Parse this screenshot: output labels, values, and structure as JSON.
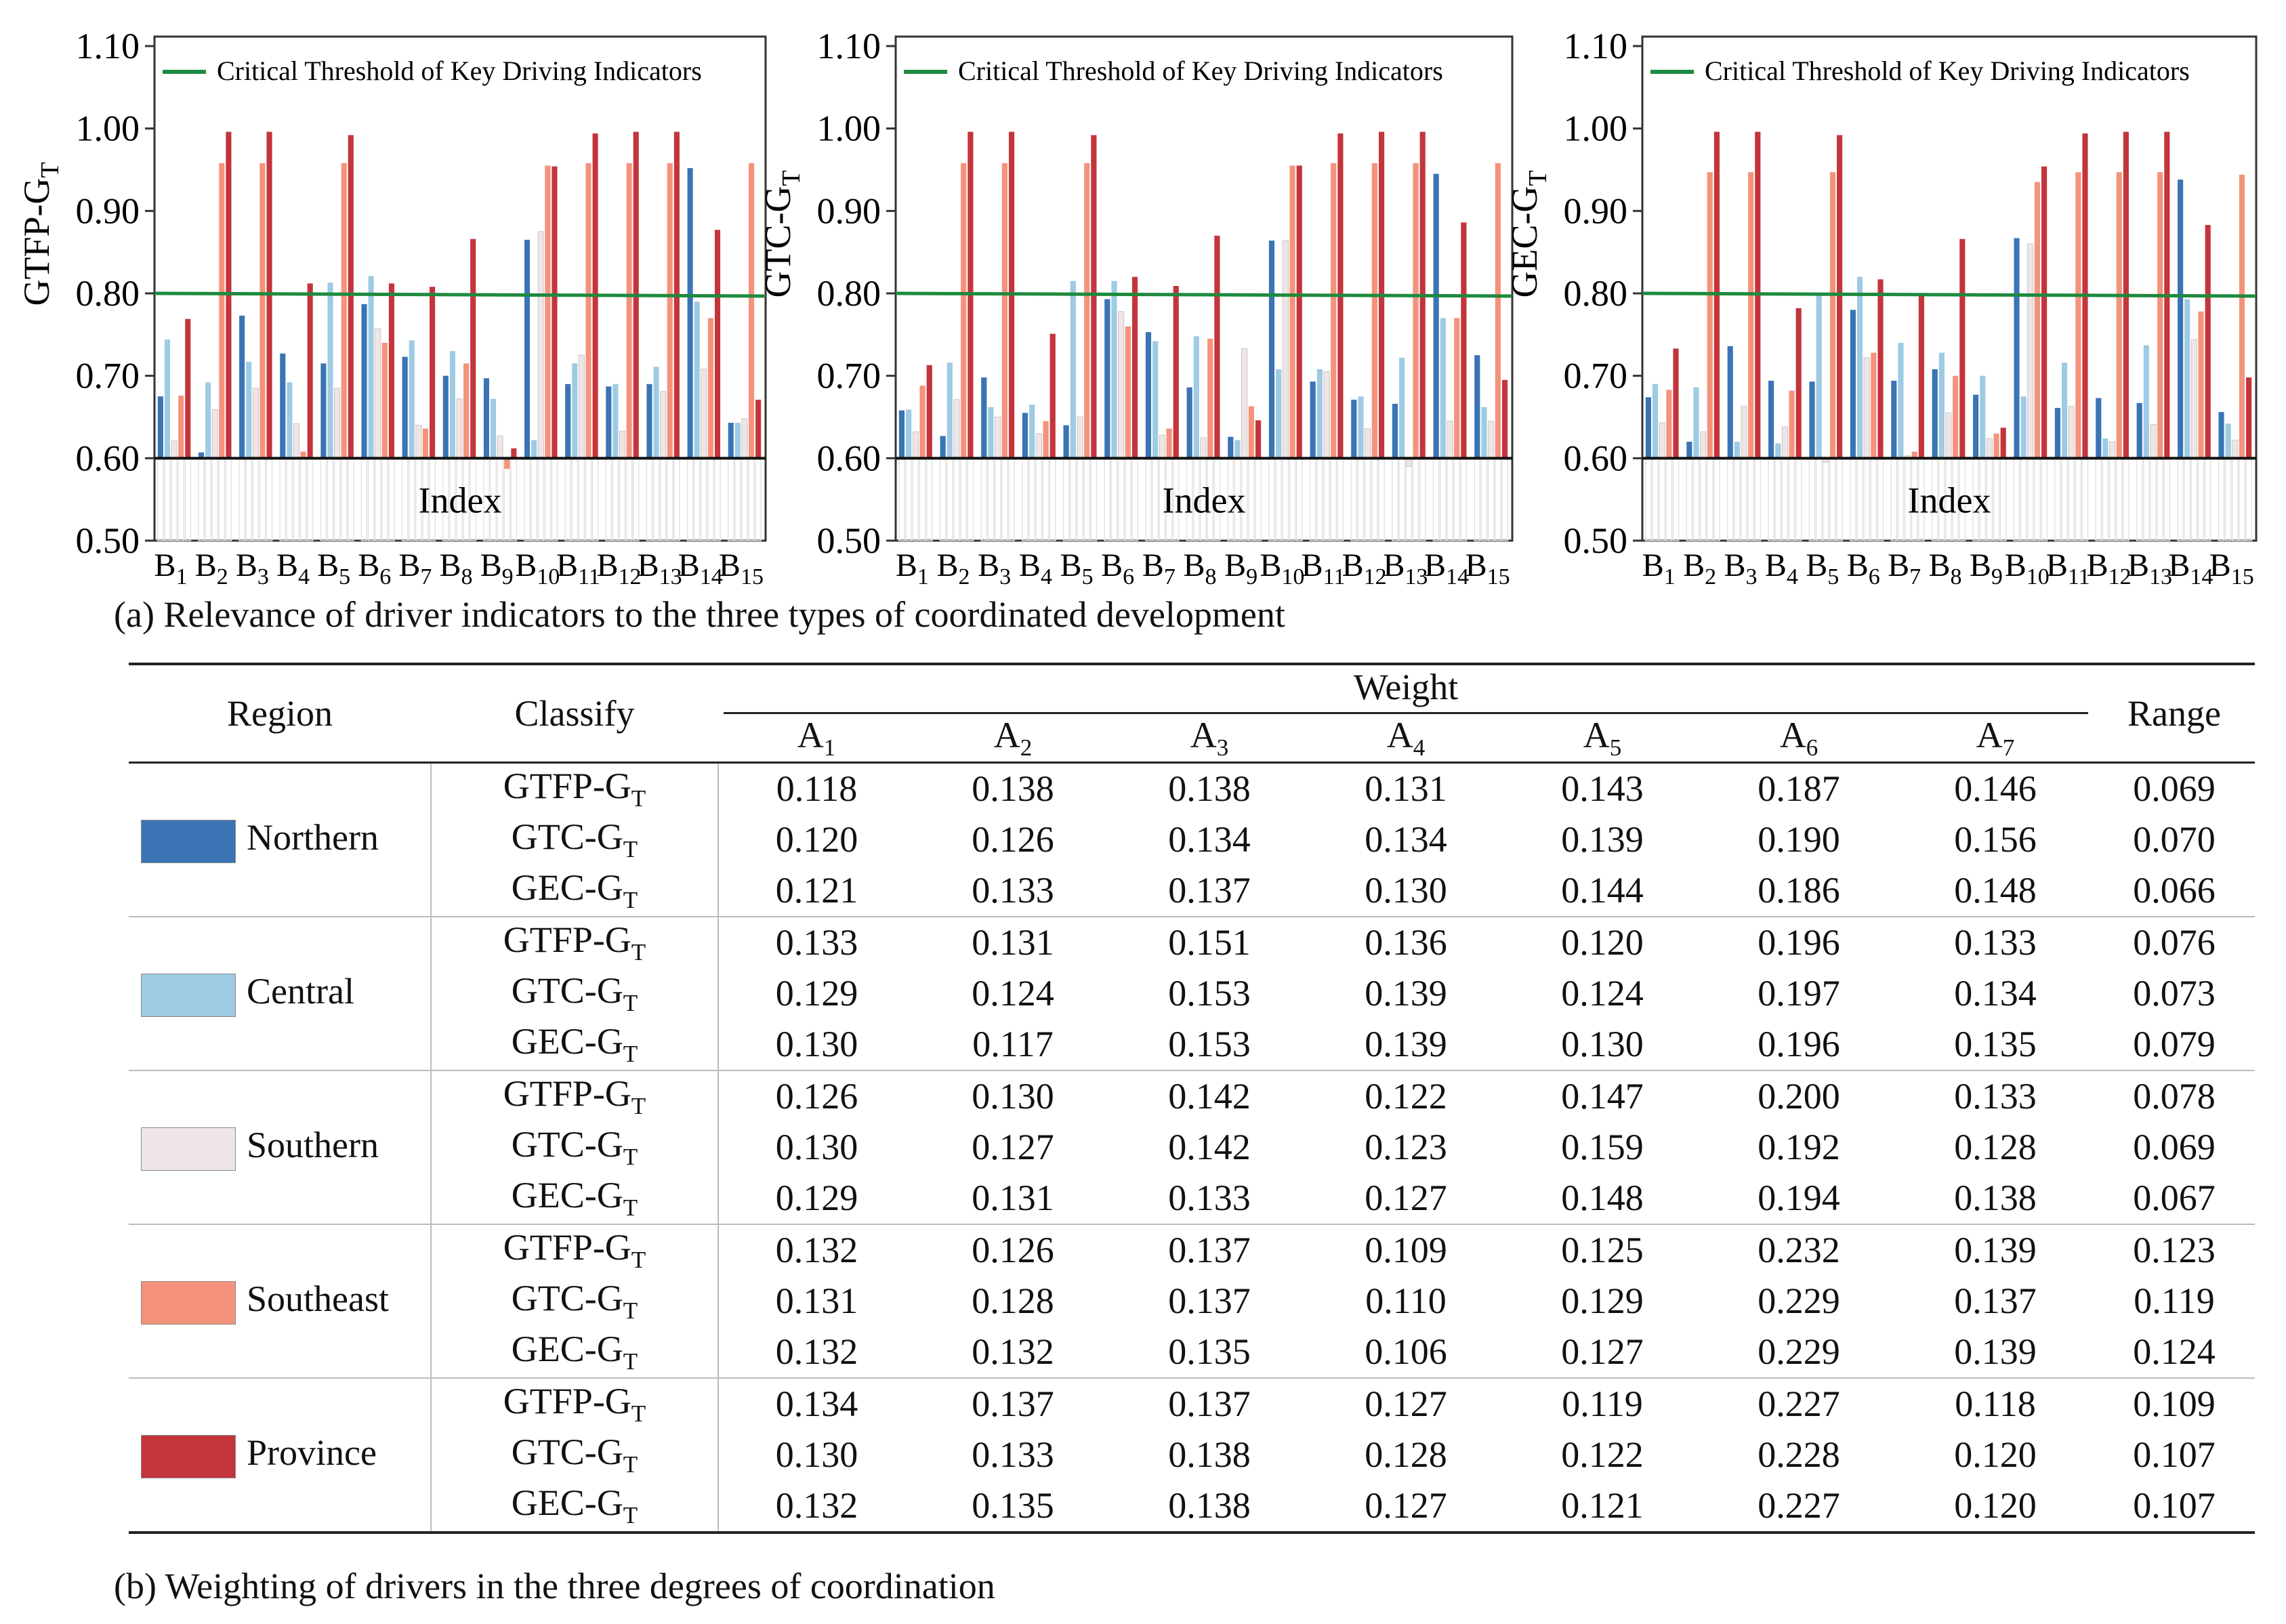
{
  "colors": {
    "northern": "#3A74B5",
    "central": "#9ECBE3",
    "southern": "#EEE6E6",
    "southeast": "#F4927C",
    "province": "#C4343B",
    "threshold": "#1E8A3E"
  },
  "captions": {
    "a": "(a) Relevance of driver indicators to the three types of coordinated development",
    "b": "(b) Weighting of drivers in the three degrees of coordination"
  },
  "chart_data": [
    {
      "type": "bar",
      "ylabel": "GTFP-GT",
      "xlabel": "Index",
      "ylim": [
        0.5,
        1.1
      ],
      "baseline": 0.6,
      "yticks": [
        "0.50",
        "0.60",
        "0.70",
        "0.80",
        "0.90",
        "1.00",
        "1.10"
      ],
      "categories": [
        "B1",
        "B2",
        "B3",
        "B4",
        "B5",
        "B6",
        "B7",
        "B8",
        "B9",
        "B10",
        "B11",
        "B12",
        "B13",
        "B14",
        "B15"
      ],
      "threshold": {
        "label": "Critical Threshold of Key Driving Indicators",
        "value": 0.8
      },
      "series": [
        {
          "name": "Northern",
          "values": [
            0.675,
            0.607,
            0.773,
            0.727,
            0.715,
            0.787,
            0.723,
            0.7,
            0.697,
            0.865,
            0.69,
            0.687,
            0.69,
            0.952,
            0.643
          ]
        },
        {
          "name": "Central",
          "values": [
            0.744,
            0.692,
            0.717,
            0.692,
            0.813,
            0.821,
            0.743,
            0.73,
            0.672,
            0.622,
            0.715,
            0.69,
            0.711,
            0.79,
            0.643
          ]
        },
        {
          "name": "Southern",
          "values": [
            0.621,
            0.659,
            0.685,
            0.642,
            0.685,
            0.757,
            0.64,
            0.672,
            0.627,
            0.875,
            0.725,
            0.633,
            0.681,
            0.708,
            0.648
          ]
        },
        {
          "name": "Southeast",
          "values": [
            0.676,
            0.958,
            0.958,
            0.608,
            0.958,
            0.74,
            0.636,
            0.715,
            0.587,
            0.955,
            0.958,
            0.958,
            0.958,
            0.77,
            0.958
          ]
        },
        {
          "name": "Province",
          "values": [
            0.769,
            0.996,
            0.996,
            0.812,
            0.992,
            0.812,
            0.808,
            0.866,
            0.612,
            0.954,
            0.994,
            0.996,
            0.996,
            0.877,
            0.671
          ]
        }
      ]
    },
    {
      "type": "bar",
      "ylabel": "GTC-GT",
      "xlabel": "Index",
      "ylim": [
        0.5,
        1.1
      ],
      "baseline": 0.6,
      "yticks": [
        "0.50",
        "0.60",
        "0.70",
        "0.80",
        "0.90",
        "1.00",
        "1.10"
      ],
      "categories": [
        "B1",
        "B2",
        "B3",
        "B4",
        "B5",
        "B6",
        "B7",
        "B8",
        "B9",
        "B10",
        "B11",
        "B12",
        "B13",
        "B14",
        "B15"
      ],
      "threshold": {
        "label": "Critical Threshold of Key Driving Indicators",
        "value": 0.8
      },
      "series": [
        {
          "name": "Northern",
          "values": [
            0.658,
            0.627,
            0.698,
            0.655,
            0.64,
            0.793,
            0.753,
            0.686,
            0.626,
            0.864,
            0.693,
            0.671,
            0.666,
            0.945,
            0.725
          ]
        },
        {
          "name": "Central",
          "values": [
            0.659,
            0.716,
            0.662,
            0.665,
            0.815,
            0.815,
            0.742,
            0.748,
            0.622,
            0.708,
            0.708,
            0.675,
            0.722,
            0.77,
            0.662
          ]
        },
        {
          "name": "Southern",
          "values": [
            0.632,
            0.671,
            0.65,
            0.63,
            0.65,
            0.778,
            0.628,
            0.625,
            0.733,
            0.864,
            0.705,
            0.636,
            0.59,
            0.645,
            0.645
          ]
        },
        {
          "name": "Southeast",
          "values": [
            0.688,
            0.958,
            0.958,
            0.645,
            0.958,
            0.76,
            0.636,
            0.745,
            0.663,
            0.955,
            0.958,
            0.958,
            0.958,
            0.77,
            0.958
          ]
        },
        {
          "name": "Province",
          "values": [
            0.713,
            0.996,
            0.996,
            0.751,
            0.992,
            0.82,
            0.809,
            0.87,
            0.646,
            0.955,
            0.994,
            0.996,
            0.996,
            0.886,
            0.695
          ]
        }
      ]
    },
    {
      "type": "bar",
      "ylabel": "GEC-GT",
      "xlabel": "Index",
      "ylim": [
        0.5,
        1.1
      ],
      "baseline": 0.6,
      "yticks": [
        "0.50",
        "0.60",
        "0.70",
        "0.80",
        "0.90",
        "1.00",
        "1.10"
      ],
      "categories": [
        "B1",
        "B2",
        "B3",
        "B4",
        "B5",
        "B6",
        "B7",
        "B8",
        "B9",
        "B10",
        "B11",
        "B12",
        "B13",
        "B14",
        "B15"
      ],
      "threshold": {
        "label": "Critical Threshold of Key Driving Indicators",
        "value": 0.8
      },
      "series": [
        {
          "name": "Northern",
          "values": [
            0.674,
            0.62,
            0.736,
            0.694,
            0.693,
            0.78,
            0.694,
            0.708,
            0.677,
            0.867,
            0.661,
            0.673,
            0.667,
            0.938,
            0.656
          ]
        },
        {
          "name": "Central",
          "values": [
            0.69,
            0.686,
            0.62,
            0.618,
            0.8,
            0.82,
            0.74,
            0.728,
            0.7,
            0.675,
            0.716,
            0.624,
            0.737,
            0.793,
            0.642
          ]
        },
        {
          "name": "Southern",
          "values": [
            0.643,
            0.632,
            0.663,
            0.638,
            0.595,
            0.722,
            0.603,
            0.655,
            0.624,
            0.86,
            0.663,
            0.62,
            0.641,
            0.744,
            0.622
          ]
        },
        {
          "name": "Southeast",
          "values": [
            0.683,
            0.947,
            0.947,
            0.682,
            0.947,
            0.728,
            0.608,
            0.7,
            0.63,
            0.935,
            0.947,
            0.947,
            0.947,
            0.778,
            0.944
          ]
        },
        {
          "name": "Province",
          "values": [
            0.733,
            0.996,
            0.996,
            0.782,
            0.992,
            0.817,
            0.8,
            0.866,
            0.637,
            0.954,
            0.994,
            0.996,
            0.996,
            0.883,
            0.698
          ]
        }
      ]
    }
  ],
  "table": {
    "headers": {
      "region": "Region",
      "classify": "Classify",
      "weight": "Weight",
      "range": "Range",
      "a_prefix": "A",
      "a_subs": [
        "1",
        "2",
        "3",
        "4",
        "5",
        "6",
        "7"
      ]
    },
    "groups": [
      {
        "region": "Northern",
        "color_key": "northern",
        "rows": [
          {
            "cls": "GTFP-G",
            "sub": "T",
            "w": [
              "0.118",
              "0.138",
              "0.138",
              "0.131",
              "0.143",
              "0.187",
              "0.146"
            ],
            "range": "0.069"
          },
          {
            "cls": "GTC-G",
            "sub": "T",
            "w": [
              "0.120",
              "0.126",
              "0.134",
              "0.134",
              "0.139",
              "0.190",
              "0.156"
            ],
            "range": "0.070"
          },
          {
            "cls": "GEC-G",
            "sub": "T",
            "w": [
              "0.121",
              "0.133",
              "0.137",
              "0.130",
              "0.144",
              "0.186",
              "0.148"
            ],
            "range": "0.066"
          }
        ]
      },
      {
        "region": "Central",
        "color_key": "central",
        "rows": [
          {
            "cls": "GTFP-G",
            "sub": "T",
            "w": [
              "0.133",
              "0.131",
              "0.151",
              "0.136",
              "0.120",
              "0.196",
              "0.133"
            ],
            "range": "0.076"
          },
          {
            "cls": "GTC-G",
            "sub": "T",
            "w": [
              "0.129",
              "0.124",
              "0.153",
              "0.139",
              "0.124",
              "0.197",
              "0.134"
            ],
            "range": "0.073"
          },
          {
            "cls": "GEC-G",
            "sub": "T",
            "w": [
              "0.130",
              "0.117",
              "0.153",
              "0.139",
              "0.130",
              "0.196",
              "0.135"
            ],
            "range": "0.079"
          }
        ]
      },
      {
        "region": "Southern",
        "color_key": "southern",
        "rows": [
          {
            "cls": "GTFP-G",
            "sub": "T",
            "w": [
              "0.126",
              "0.130",
              "0.142",
              "0.122",
              "0.147",
              "0.200",
              "0.133"
            ],
            "range": "0.078"
          },
          {
            "cls": "GTC-G",
            "sub": "T",
            "w": [
              "0.130",
              "0.127",
              "0.142",
              "0.123",
              "0.159",
              "0.192",
              "0.128"
            ],
            "range": "0.069"
          },
          {
            "cls": "GEC-G",
            "sub": "T",
            "w": [
              "0.129",
              "0.131",
              "0.133",
              "0.127",
              "0.148",
              "0.194",
              "0.138"
            ],
            "range": "0.067"
          }
        ]
      },
      {
        "region": "Southeast",
        "color_key": "southeast",
        "rows": [
          {
            "cls": "GTFP-G",
            "sub": "T",
            "w": [
              "0.132",
              "0.126",
              "0.137",
              "0.109",
              "0.125",
              "0.232",
              "0.139"
            ],
            "range": "0.123"
          },
          {
            "cls": "GTC-G",
            "sub": "T",
            "w": [
              "0.131",
              "0.128",
              "0.137",
              "0.110",
              "0.129",
              "0.229",
              "0.137"
            ],
            "range": "0.119"
          },
          {
            "cls": "GEC-G",
            "sub": "T",
            "w": [
              "0.132",
              "0.132",
              "0.135",
              "0.106",
              "0.127",
              "0.229",
              "0.139"
            ],
            "range": "0.124"
          }
        ]
      },
      {
        "region": "Province",
        "color_key": "province",
        "rows": [
          {
            "cls": "GTFP-G",
            "sub": "T",
            "w": [
              "0.134",
              "0.137",
              "0.137",
              "0.127",
              "0.119",
              "0.227",
              "0.118"
            ],
            "range": "0.109"
          },
          {
            "cls": "GTC-G",
            "sub": "T",
            "w": [
              "0.130",
              "0.133",
              "0.138",
              "0.128",
              "0.122",
              "0.228",
              "0.120"
            ],
            "range": "0.107"
          },
          {
            "cls": "GEC-G",
            "sub": "T",
            "w": [
              "0.132",
              "0.135",
              "0.138",
              "0.127",
              "0.121",
              "0.227",
              "0.120"
            ],
            "range": "0.107"
          }
        ]
      }
    ]
  }
}
